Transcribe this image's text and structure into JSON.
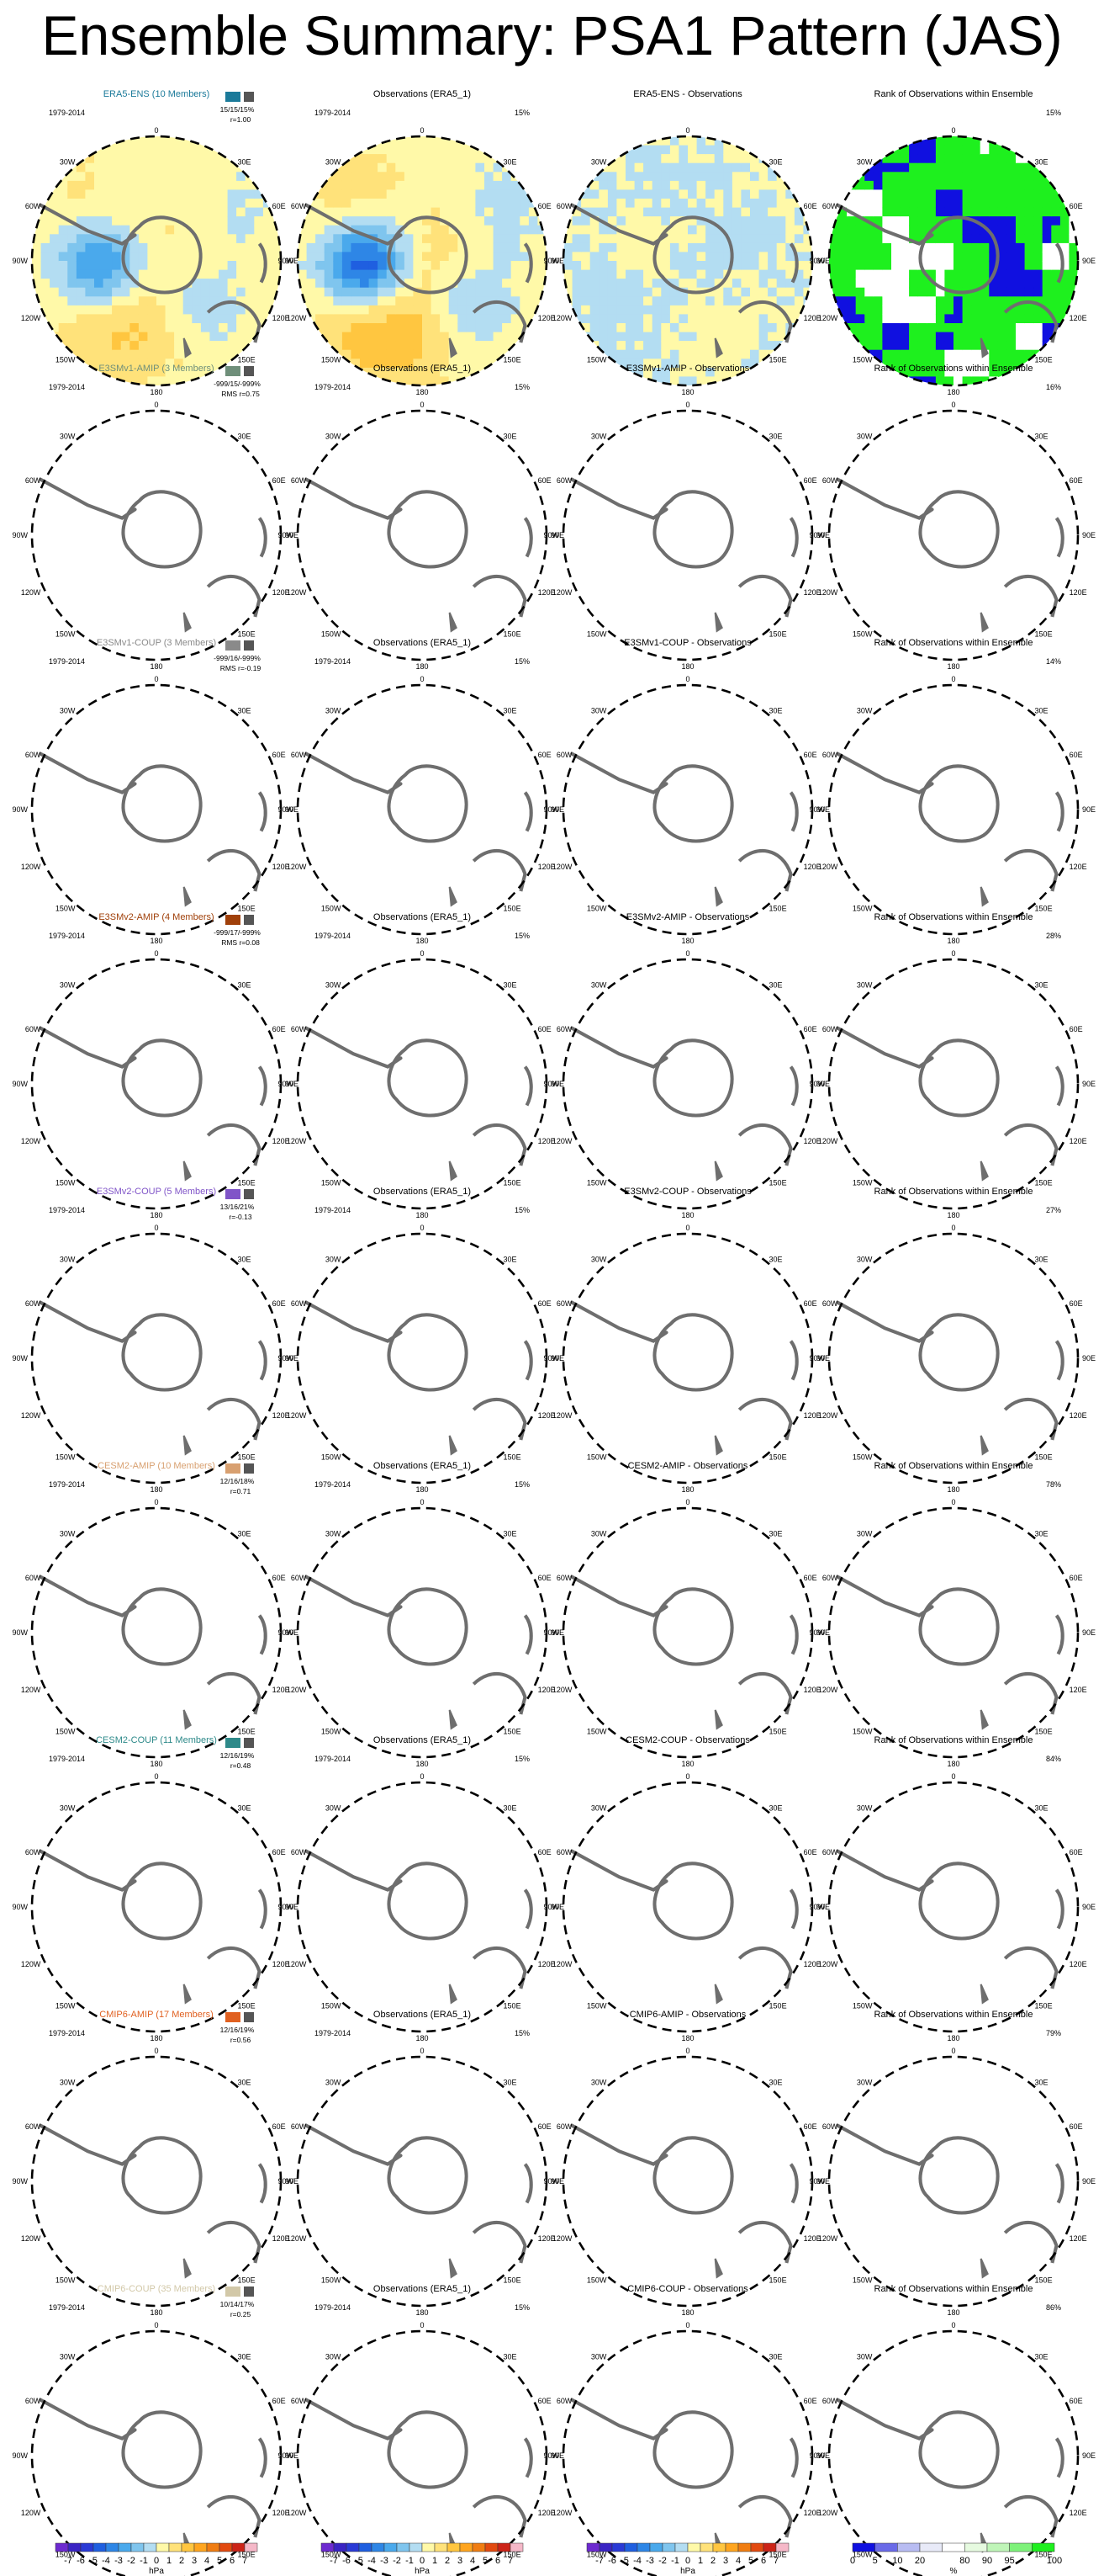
{
  "title": "Ensemble Summary: PSA1 Pattern (JAS)",
  "period": "1979-2014",
  "colors": {
    "pos": [
      "#fff9a8",
      "#ffe27a",
      "#ffc640",
      "#ffa51f",
      "#f07d12",
      "#e24a10",
      "#cc2418"
    ],
    "neg": [
      "#b3ddf2",
      "#7fc5ee",
      "#4aa9ec",
      "#2e86e6",
      "#1f5fe0",
      "#2a3ad6",
      "#3a24c4"
    ],
    "rank_low": "#1010e0",
    "rank_high": "#1ef01e",
    "rank_lowmid": "#b8bcf2",
    "rank_highmid": "#bff5b8",
    "coast": "#6e6e6e"
  },
  "column_titles": [
    "",
    "Observations (ERA5_1)",
    "- Observations",
    "Rank of Observations within Ensemble"
  ],
  "rows": [
    {
      "model": "ERA5-ENS (10 Members)",
      "color": "#1b7a9a",
      "stats1": "15/15/15%",
      "stats2": "r=1.00",
      "obs_pct": "15%",
      "diff": "ERA5-ENS - Observations",
      "rank_pct": "15%",
      "diffamp": 0.1,
      "rank": "sat"
    },
    {
      "model": "E3SMv1-AMIP (3 Members)",
      "color": "#6f8f7a",
      "stats1": "-999/15/-999%",
      "stats2": "RMS r=0.75",
      "obs_pct": "15%",
      "diff": "E3SMv1-AMIP - Observations",
      "rank_pct": "16%",
      "diffamp": 0.4,
      "rank": "sat"
    },
    {
      "model": "E3SMv1-COUP (3 Members)",
      "color": "#8a8a8a",
      "stats1": "-999/16/-999%",
      "stats2": "RMS r=-0.19",
      "obs_pct": "15%",
      "diff": "E3SMv1-COUP - Observations",
      "rank_pct": "14%",
      "diffamp": 1.0,
      "rank": "sat"
    },
    {
      "model": "E3SMv2-AMIP (4 Members)",
      "color": "#a0400a",
      "stats1": "-999/17/-999%",
      "stats2": "RMS r=0.08",
      "obs_pct": "15%",
      "diff": "E3SMv2-AMIP - Observations",
      "rank_pct": "28%",
      "diffamp": 0.9,
      "rank": "sat"
    },
    {
      "model": "E3SMv2-COUP (5 Members)",
      "color": "#8055c8",
      "stats1": "13/16/21%",
      "stats2": "r=-0.13",
      "obs_pct": "15%",
      "diff": "E3SMv2-COUP - Observations",
      "rank_pct": "27%",
      "diffamp": 0.95,
      "rank": "sat"
    },
    {
      "model": "CESM2-AMIP (10 Members)",
      "color": "#d8a070",
      "stats1": "12/16/18%",
      "stats2": "r=0.71",
      "obs_pct": "15%",
      "diff": "CESM2-AMIP - Observations",
      "rank_pct": "78%",
      "diffamp": 0.5,
      "rank": "light"
    },
    {
      "model": "CESM2-COUP (11 Members)",
      "color": "#2e8a8a",
      "stats1": "12/16/19%",
      "stats2": "r=0.48",
      "obs_pct": "15%",
      "diff": "CESM2-COUP - Observations",
      "rank_pct": "84%",
      "diffamp": 0.6,
      "rank": "light"
    },
    {
      "model": "CMIP6-AMIP (17 Members)",
      "color": "#e06020",
      "stats1": "12/16/19%",
      "stats2": "r=0.56",
      "obs_pct": "15%",
      "diff": "CMIP6-AMIP - Observations",
      "rank_pct": "79%",
      "diffamp": 0.55,
      "rank": "light"
    },
    {
      "model": "CMIP6-COUP (35 Members)",
      "color": "#d2c8a8",
      "stats1": "10/14/17%",
      "stats2": "r=0.25",
      "obs_pct": "15%",
      "diff": "CMIP6-COUP - Observations",
      "rank_pct": "86%",
      "diffamp": 0.6,
      "rank": "light"
    }
  ],
  "map_labels": {
    "top": "0",
    "left": "90W",
    "right": "90E",
    "bottom": "180",
    "ul": "30W",
    "ur": "30E",
    "ml": "60W",
    "mr": "60E",
    "ll": "120W",
    "lr": "120E",
    "bl": "150W",
    "br": "150E"
  },
  "chart_data": {
    "type": "heatmap",
    "colorbar_ticks": [
      "-7",
      "-6",
      "-5",
      "-4",
      "-3",
      "-2",
      "-1",
      "0",
      "1",
      "2",
      "3",
      "4",
      "5",
      "6",
      "7"
    ],
    "colorbar_unit": "hPa",
    "rank_ticks": [
      "0",
      "5",
      "10",
      "20",
      "80",
      "90",
      "95",
      "100"
    ],
    "rank_unit": "%"
  }
}
